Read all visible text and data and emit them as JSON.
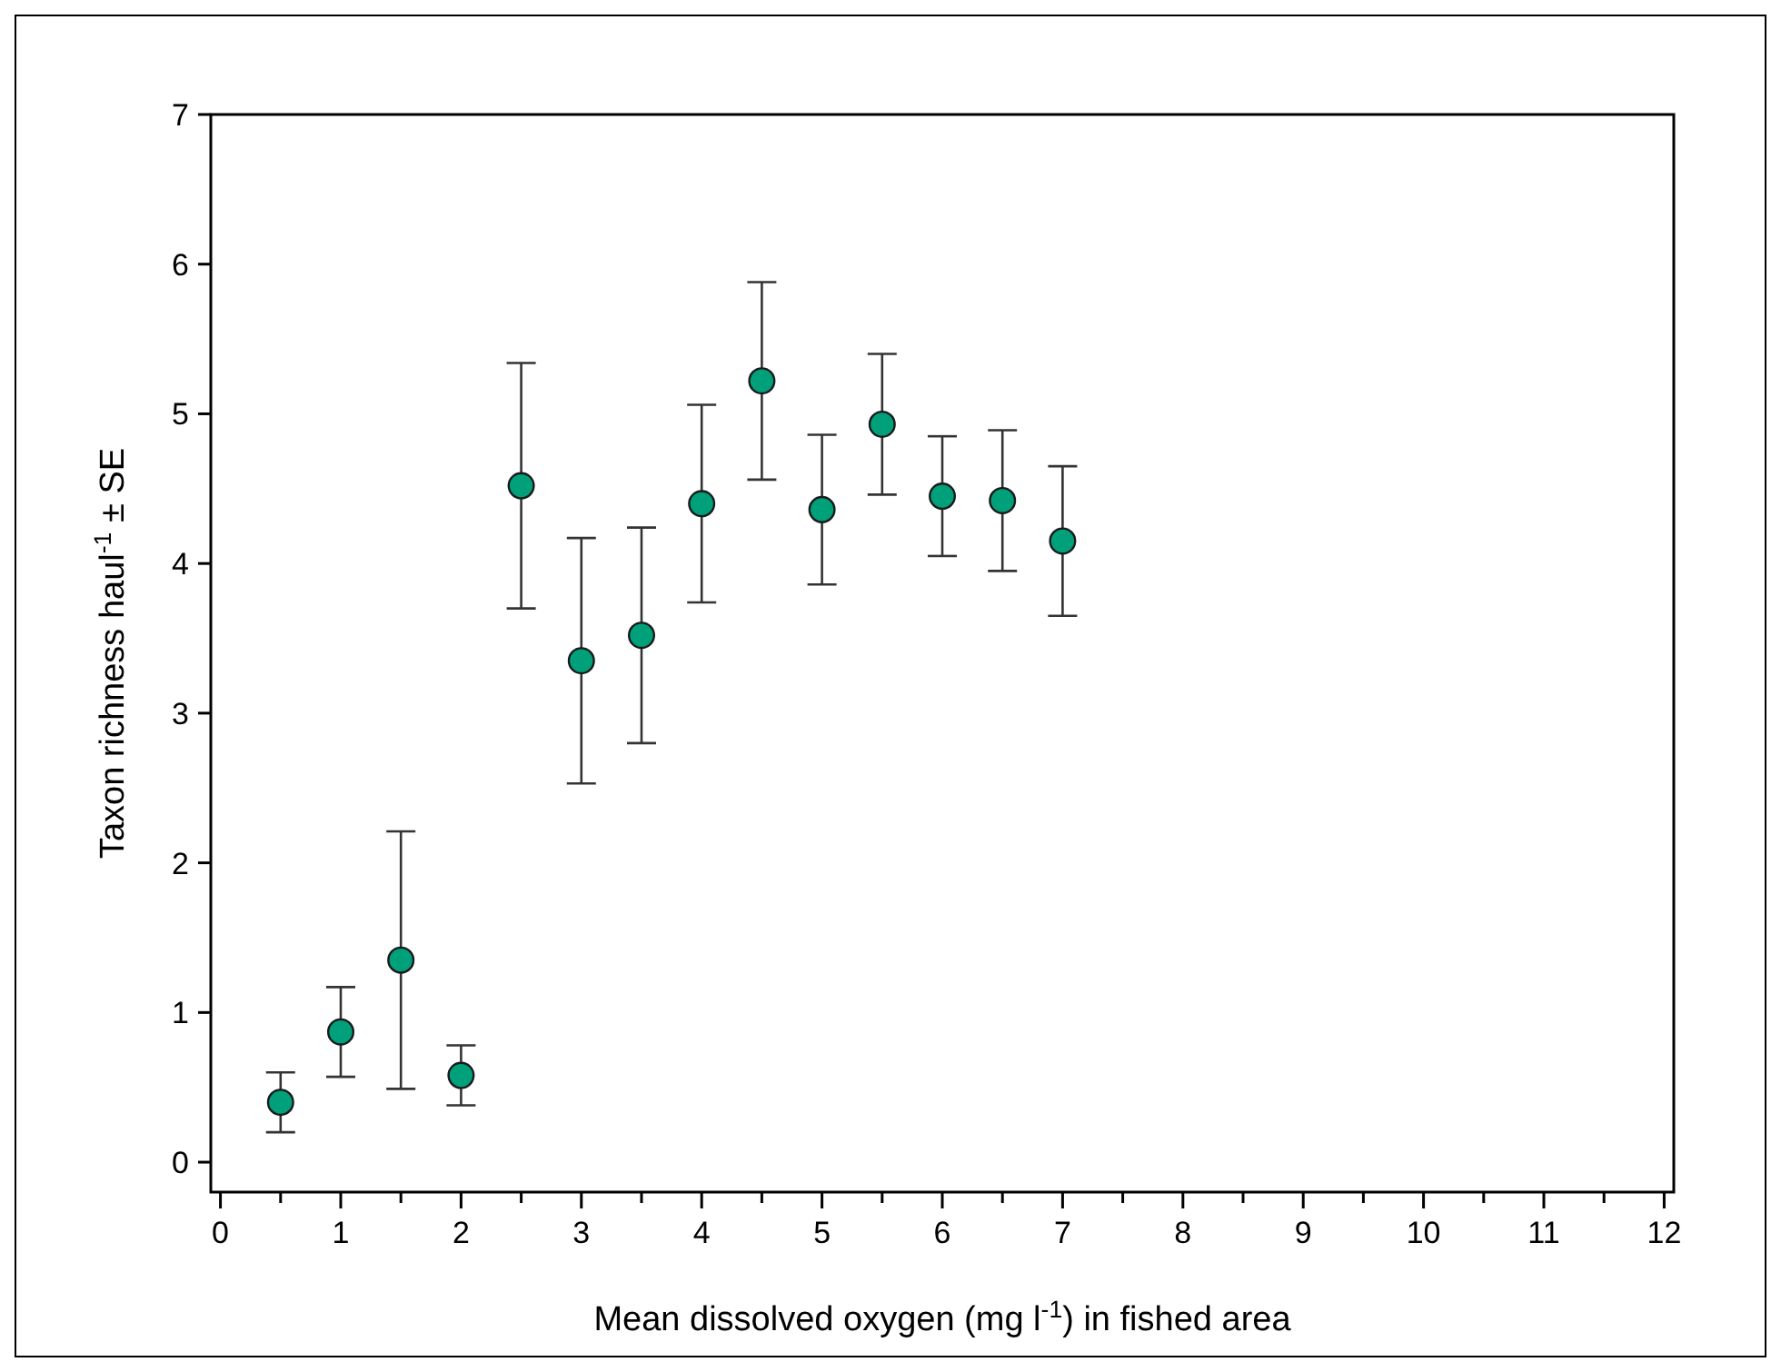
{
  "chart_data": {
    "type": "scatter",
    "xlabel": "Mean dissolved oxygen (mg l$^{-1}$) in fished area",
    "ylabel": "Taxon richness haul$^{-1}$ ± SE",
    "x": [
      0.5,
      1,
      1.5,
      2,
      2.5,
      3,
      3.5,
      4,
      4.5,
      5,
      5.5,
      6,
      6.5,
      7
    ],
    "series": [
      {
        "color": "#00a07a",
        "values": [
          0.4,
          0.87,
          1.35,
          0.58,
          4.52,
          3.35,
          3.52,
          4.4,
          5.22,
          4.36,
          4.93,
          4.45,
          4.42,
          4.15
        ],
        "errors": [
          0.2,
          0.3,
          0.86,
          0.2,
          0.82,
          0.82,
          0.72,
          0.66,
          0.66,
          0.5,
          0.47,
          0.4,
          0.47,
          0.5
        ]
      }
    ],
    "marker": "circle",
    "xlim": [
      -0.08,
      12.08
    ],
    "ylim": [
      -0.2,
      7
    ],
    "xticks": [
      0,
      {
        "value": 0.5,
        "label": null
      },
      1,
      {
        "value": 1.5,
        "label": null
      },
      2,
      {
        "value": 2.5,
        "label": null
      },
      3,
      {
        "value": 3.5,
        "label": null
      },
      4,
      {
        "value": 4.5,
        "label": null
      },
      5,
      {
        "value": 5.5,
        "label": null
      },
      6,
      {
        "value": 6.5,
        "label": null
      },
      7,
      {
        "value": 7.5,
        "label": null
      },
      8,
      {
        "value": 8.5,
        "label": null
      },
      9,
      {
        "value": 9.5,
        "label": null
      },
      10,
      {
        "value": 10.5,
        "label": null
      },
      11,
      {
        "value": 11.5,
        "label": null
      },
      12
    ],
    "yticks": [
      0,
      1,
      2,
      3,
      4,
      5,
      6,
      7
    ],
    "grid": false
  }
}
